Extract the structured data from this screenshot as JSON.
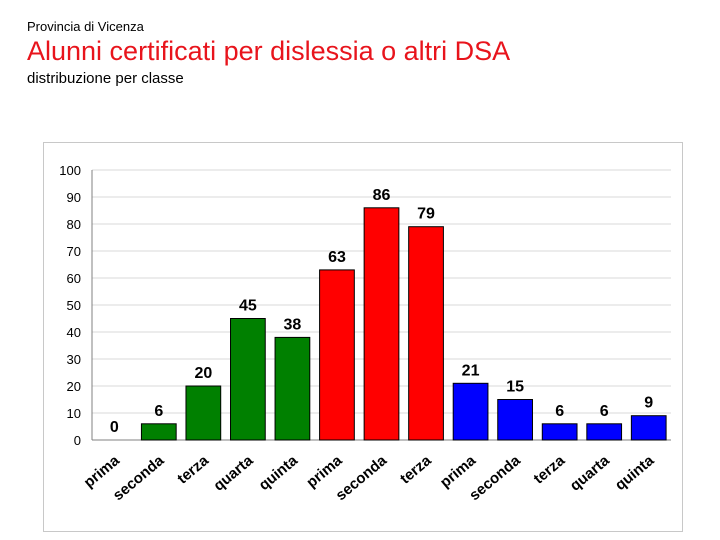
{
  "header": {
    "province": "Provincia di Vicenza",
    "title": "Alunni certificati per dislessia o altri DSA",
    "subtitle": "distribuzione per classe"
  },
  "chart_data": {
    "type": "bar",
    "title": "",
    "xlabel": "",
    "ylabel": "",
    "ylim": [
      0,
      100
    ],
    "yticks": [
      0,
      10,
      20,
      30,
      40,
      50,
      60,
      70,
      80,
      90,
      100
    ],
    "grid": true,
    "legend": "none",
    "categories": [
      "prima",
      "seconda",
      "terza",
      "quarta",
      "quinta",
      "prima",
      "seconda",
      "terza",
      "prima",
      "seconda",
      "terza",
      "quarta",
      "quinta"
    ],
    "values": [
      0,
      6,
      20,
      45,
      38,
      63,
      86,
      79,
      21,
      15,
      6,
      6,
      9
    ],
    "colors": [
      "#008000",
      "#008000",
      "#008000",
      "#008000",
      "#008000",
      "#ff0000",
      "#ff0000",
      "#ff0000",
      "#0000ff",
      "#0000ff",
      "#0000ff",
      "#0000ff",
      "#0000ff"
    ],
    "data_labels": true
  }
}
